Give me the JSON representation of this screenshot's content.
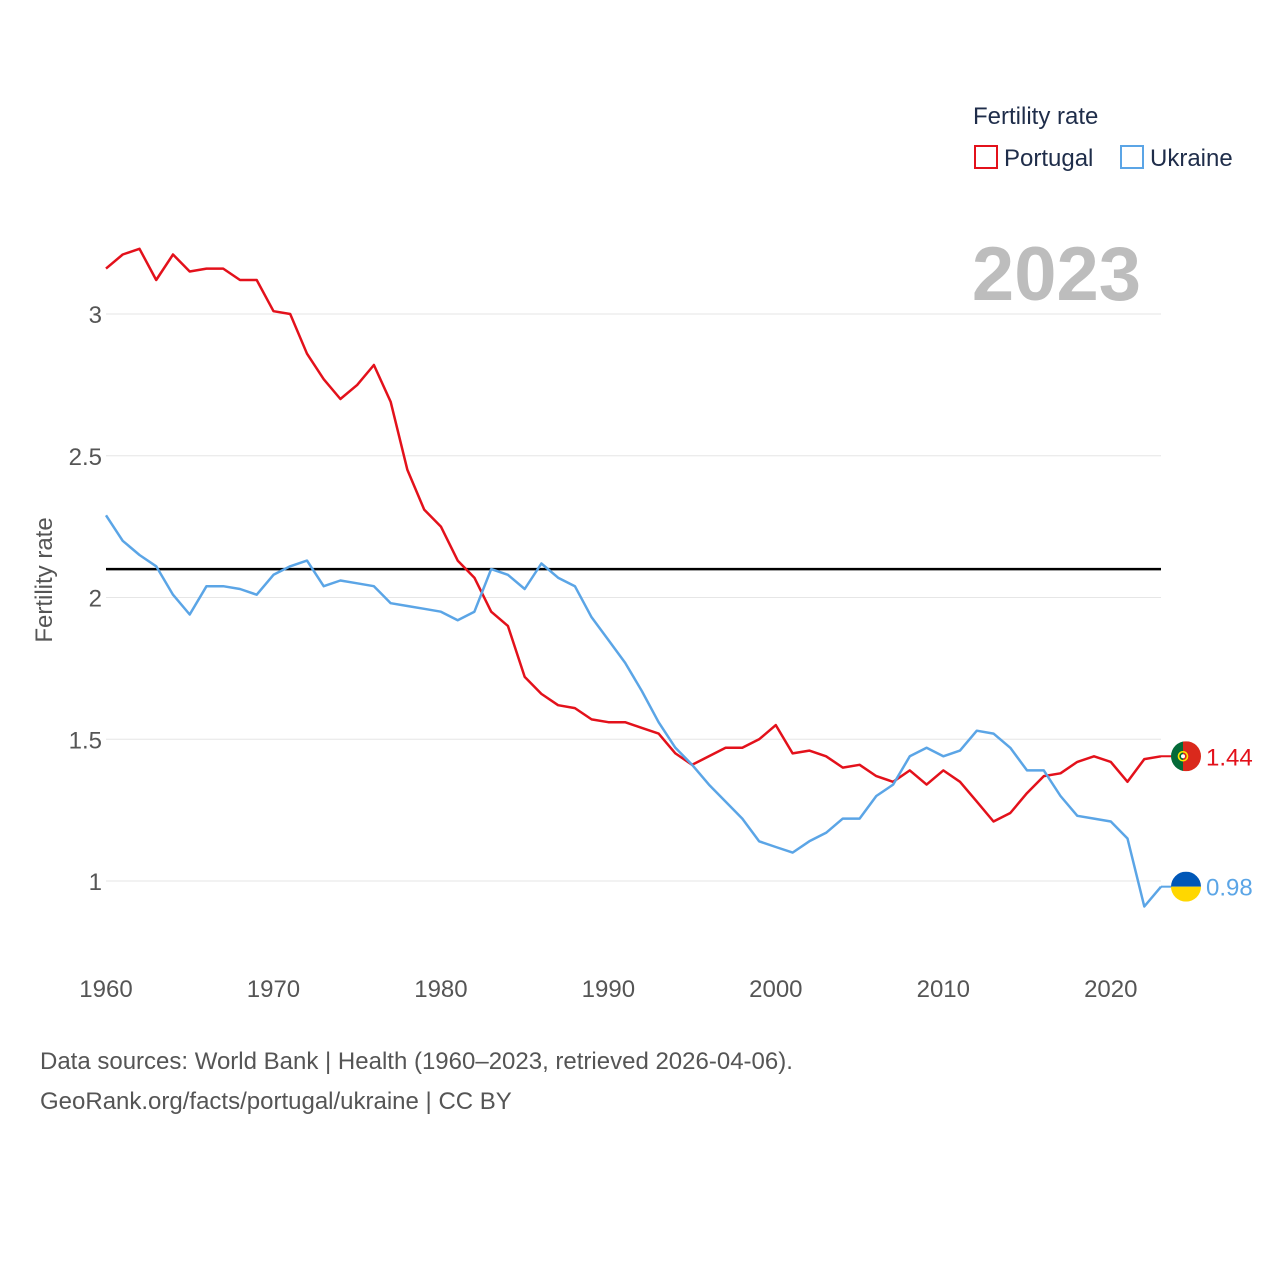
{
  "chart_data": {
    "type": "line",
    "legend_title": "Fertility rate",
    "ylabel": "Fertility rate",
    "xlabel": "",
    "year_label": "2023",
    "xlim": [
      1960,
      2023
    ],
    "ylim": [
      0.8,
      3.25
    ],
    "y_ticks": [
      1,
      1.5,
      2,
      2.5,
      3
    ],
    "x_ticks": [
      1960,
      1970,
      1980,
      1990,
      2000,
      2010,
      2020
    ],
    "reference_line": 2.1,
    "x": [
      1960,
      1961,
      1962,
      1963,
      1964,
      1965,
      1966,
      1967,
      1968,
      1969,
      1970,
      1971,
      1972,
      1973,
      1974,
      1975,
      1976,
      1977,
      1978,
      1979,
      1980,
      1981,
      1982,
      1983,
      1984,
      1985,
      1986,
      1987,
      1988,
      1989,
      1990,
      1991,
      1992,
      1993,
      1994,
      1995,
      1996,
      1997,
      1998,
      1999,
      2000,
      2001,
      2002,
      2003,
      2004,
      2005,
      2006,
      2007,
      2008,
      2009,
      2010,
      2011,
      2012,
      2013,
      2014,
      2015,
      2016,
      2017,
      2018,
      2019,
      2020,
      2021,
      2022,
      2023
    ],
    "series": [
      {
        "name": "Portugal",
        "color": "#e3111b",
        "end_label": "1.44",
        "flag": "portugal-flag",
        "values": [
          3.16,
          3.21,
          3.23,
          3.12,
          3.21,
          3.15,
          3.16,
          3.16,
          3.12,
          3.12,
          3.01,
          3.0,
          2.86,
          2.77,
          2.7,
          2.75,
          2.82,
          2.69,
          2.45,
          2.31,
          2.25,
          2.13,
          2.07,
          1.95,
          1.9,
          1.72,
          1.66,
          1.62,
          1.61,
          1.57,
          1.56,
          1.56,
          1.54,
          1.52,
          1.45,
          1.41,
          1.44,
          1.47,
          1.47,
          1.5,
          1.55,
          1.45,
          1.46,
          1.44,
          1.4,
          1.41,
          1.37,
          1.35,
          1.39,
          1.34,
          1.39,
          1.35,
          1.28,
          1.21,
          1.24,
          1.31,
          1.37,
          1.38,
          1.42,
          1.44,
          1.42,
          1.35,
          1.43,
          1.44
        ]
      },
      {
        "name": "Ukraine",
        "color": "#5ba5e6",
        "end_label": "0.98",
        "flag": "ukraine-flag",
        "values": [
          2.29,
          2.2,
          2.15,
          2.11,
          2.01,
          1.94,
          2.04,
          2.04,
          2.03,
          2.01,
          2.08,
          2.11,
          2.13,
          2.04,
          2.06,
          2.05,
          2.04,
          1.98,
          1.97,
          1.96,
          1.95,
          1.92,
          1.95,
          2.1,
          2.08,
          2.03,
          2.12,
          2.07,
          2.04,
          1.93,
          1.85,
          1.77,
          1.67,
          1.56,
          1.47,
          1.41,
          1.34,
          1.28,
          1.22,
          1.14,
          1.12,
          1.1,
          1.14,
          1.17,
          1.22,
          1.22,
          1.3,
          1.34,
          1.44,
          1.47,
          1.44,
          1.46,
          1.53,
          1.52,
          1.47,
          1.39,
          1.39,
          1.3,
          1.23,
          1.22,
          1.21,
          1.15,
          0.91,
          0.98
        ]
      }
    ]
  },
  "footer": {
    "source_line1": "Data sources: World Bank | Health (1960–2023, retrieved 2026-04-06).",
    "source_line2": "GeoRank.org/facts/portugal/ukraine | CC BY"
  }
}
